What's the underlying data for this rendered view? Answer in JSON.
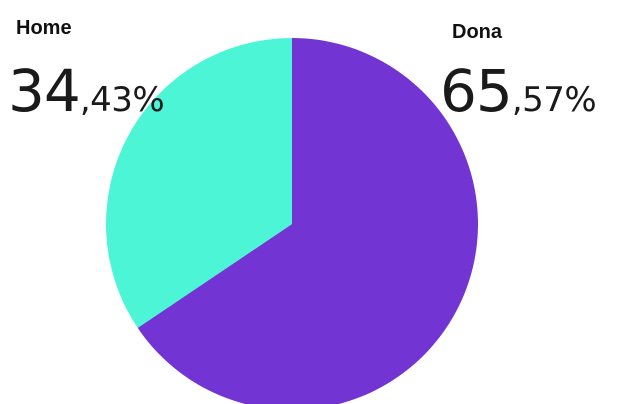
{
  "chart_data": {
    "type": "pie",
    "categories": [
      "Home",
      "Dona"
    ],
    "values": [
      34.43,
      65.57
    ],
    "value_labels": [
      {
        "int": "34",
        "dec": ",43%"
      },
      {
        "int": "65",
        "dec": ",57%"
      }
    ],
    "colors": {
      "Home": "#4BF5D6",
      "Dona": "#7235D3"
    },
    "legend_placement": "top",
    "grid": false
  }
}
